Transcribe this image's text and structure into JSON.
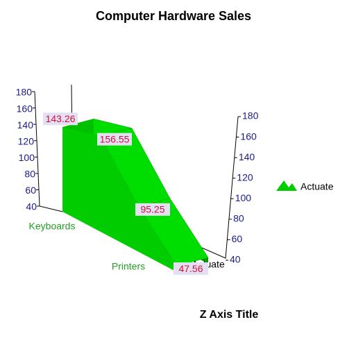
{
  "chart_data": {
    "type": "area3d",
    "title": "Computer Hardware Sales",
    "categories": [
      "Keyboards",
      null,
      "Printers",
      null
    ],
    "series": [
      {
        "name": "Actuate",
        "color": "#00cc00",
        "values": [
          143.26,
          156.55,
          95.25,
          47.56
        ]
      }
    ],
    "z_categories": [
      "Actuate"
    ],
    "z_axis_title": "Z Axis Title",
    "ylim": [
      40,
      180
    ],
    "yticks": [
      40,
      60,
      80,
      100,
      120,
      140,
      160,
      180
    ],
    "y2lim": [
      40,
      180
    ],
    "y2ticks": [
      40,
      60,
      80,
      100,
      120,
      140,
      160,
      180
    ],
    "legend": "right"
  }
}
